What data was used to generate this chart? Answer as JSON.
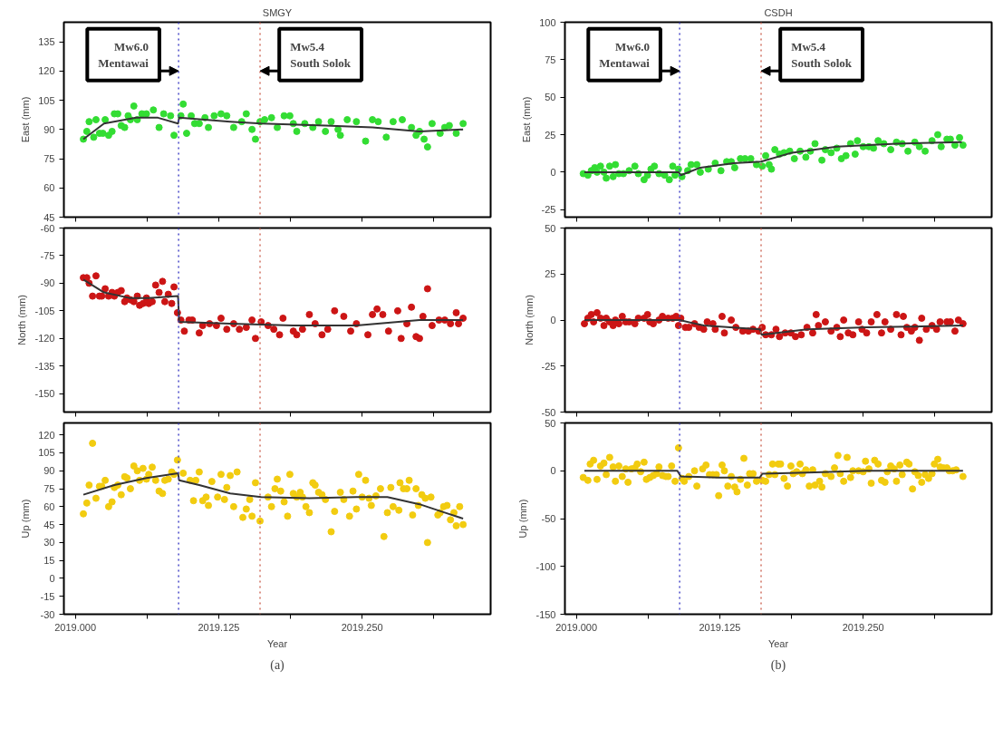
{
  "chart_data": [
    {
      "type": "scatter",
      "title": "SMGY",
      "ylabel": "East (mm)",
      "xlim": [
        2018.99,
        2019.362
      ],
      "ylim": [
        45,
        145
      ],
      "xticks": [
        2019,
        2019.0625,
        2019.125,
        2019.1875,
        2019.25,
        2019.3125
      ],
      "yticks": [
        45,
        60,
        75,
        90,
        105,
        120,
        135
      ],
      "tick_labels": "y",
      "grid": false,
      "line_style": "solid",
      "ref_lines": [
        {
          "axis": "x",
          "value": 2019.09,
          "color": "#4848c8",
          "line_style": "dotted",
          "label": "Mw6.0\nMentawai"
        },
        {
          "axis": "x",
          "value": 2019.161,
          "color": "#d07060",
          "line_style": "dotted",
          "label": "Mw5.4\nSouth Solok"
        }
      ],
      "series": [
        {
          "marker": "circle",
          "color": "#33dd33",
          "x": [
            2019.007,
            2019.01,
            2019.012,
            2019.016,
            2019.018,
            2019.021,
            2019.024,
            2019.026,
            2019.029,
            2019.032,
            2019.034,
            2019.037,
            2019.04,
            2019.043,
            2019.046,
            2019.048,
            2019.051,
            2019.054,
            2019.058,
            2019.062,
            2019.068,
            2019.073,
            2019.077,
            2019.083,
            2019.086,
            2019.092,
            2019.094,
            2019.097,
            2019.101,
            2019.104,
            2019.108,
            2019.113,
            2019.116,
            2019.121,
            2019.127,
            2019.132,
            2019.138,
            2019.145,
            2019.149,
            2019.154,
            2019.157,
            2019.161,
            2019.165,
            2019.171,
            2019.176,
            2019.182,
            2019.187,
            2019.19,
            2019.193,
            2019.2,
            2019.207,
            2019.212,
            2019.218,
            2019.223,
            2019.229,
            2019.231,
            2019.237,
            2019.245,
            2019.253,
            2019.259,
            2019.264,
            2019.271,
            2019.277,
            2019.285,
            2019.293,
            2019.297,
            2019.3,
            2019.304,
            2019.307,
            2019.311,
            2019.318,
            2019.322,
            2019.326,
            2019.332,
            2019.338
          ],
          "values": [
            85,
            89,
            94,
            86,
            95,
            88,
            88,
            95,
            87,
            89,
            98,
            98,
            92,
            91,
            97,
            95,
            102,
            95,
            98,
            98,
            100,
            91,
            98,
            97,
            87,
            97,
            103,
            88,
            97,
            93,
            93,
            96,
            91,
            97,
            98,
            97,
            91,
            94,
            98,
            90,
            85,
            94,
            95,
            96,
            91,
            97,
            97,
            93,
            89,
            93,
            91,
            94,
            89,
            94,
            90,
            87,
            95,
            94,
            84,
            95,
            94,
            86,
            94,
            95,
            91,
            87,
            89,
            85,
            81,
            93,
            88,
            91,
            92,
            88,
            93
          ]
        },
        {
          "type": "line",
          "color": "#333333",
          "x": [
            2019.007,
            2019.025,
            2019.053,
            2019.072,
            2019.0895,
            2019.0905,
            2019.135,
            2019.162,
            2019.218,
            2019.259,
            2019.3,
            2019.338
          ],
          "values": [
            85,
            93,
            96,
            96,
            93,
            96,
            94,
            93,
            92,
            91,
            89,
            90
          ]
        }
      ]
    },
    {
      "type": "scatter",
      "title": "CSDH",
      "ylabel": "East (mm)",
      "xlim": [
        2018.99,
        2019.362
      ],
      "ylim": [
        -30,
        100
      ],
      "xticks": [
        2019,
        2019.0625,
        2019.125,
        2019.1875,
        2019.25,
        2019.3125
      ],
      "yticks": [
        -25,
        0,
        25,
        50,
        75,
        100
      ],
      "tick_labels": "y",
      "grid": false,
      "line_style": "solid",
      "ref_lines": [
        {
          "axis": "x",
          "value": 2019.09,
          "color": "#4848c8",
          "line_style": "dotted",
          "label": "Mw6.0\nMentawai"
        },
        {
          "axis": "x",
          "value": 2019.161,
          "color": "#d07060",
          "line_style": "dotted",
          "label": "Mw5.4\nSouth Solok"
        }
      ],
      "series": [
        {
          "marker": "circle",
          "color": "#33dd33",
          "x": [
            2019.006,
            2019.01,
            2019.013,
            2019.016,
            2019.018,
            2019.021,
            2019.024,
            2019.026,
            2019.029,
            2019.032,
            2019.034,
            2019.037,
            2019.041,
            2019.046,
            2019.051,
            2019.054,
            2019.059,
            2019.062,
            2019.065,
            2019.068,
            2019.072,
            2019.077,
            2019.081,
            2019.084,
            2019.086,
            2019.089,
            2019.092,
            2019.097,
            2019.1,
            2019.105,
            2019.108,
            2019.115,
            2019.121,
            2019.126,
            2019.131,
            2019.135,
            2019.138,
            2019.143,
            2019.147,
            2019.152,
            2019.157,
            2019.162,
            2019.165,
            2019.168,
            2019.17,
            2019.173,
            2019.177,
            2019.181,
            2019.186,
            2019.19,
            2019.195,
            2019.2,
            2019.204,
            2019.208,
            2019.214,
            2019.217,
            2019.222,
            2019.227,
            2019.231,
            2019.235,
            2019.239,
            2019.243,
            2019.245,
            2019.25,
            2019.255,
            2019.259,
            2019.263,
            2019.268,
            2019.274,
            2019.279,
            2019.284,
            2019.289,
            2019.295,
            2019.299,
            2019.304,
            2019.31,
            2019.315,
            2019.318,
            2019.323,
            2019.326,
            2019.33,
            2019.334,
            2019.337
          ],
          "values": [
            -1,
            -2,
            1,
            3,
            0,
            4,
            0,
            -4,
            4,
            -3,
            5,
            -1,
            -1,
            1,
            4,
            -1,
            -5,
            -2,
            2,
            4,
            -1,
            -2,
            -5,
            4,
            -2,
            2,
            -3,
            1,
            5,
            5,
            0,
            2,
            6,
            1,
            7,
            7,
            3,
            9,
            9,
            9,
            5,
            4,
            11,
            5,
            2,
            15,
            12,
            13,
            14,
            9,
            14,
            10,
            14,
            19,
            8,
            15,
            13,
            16,
            9,
            11,
            19,
            12,
            21,
            17,
            17,
            16,
            21,
            19,
            15,
            20,
            19,
            14,
            20,
            17,
            14,
            21,
            25,
            17,
            22,
            22,
            18,
            23,
            18
          ]
        },
        {
          "type": "line",
          "color": "#333333",
          "x": [
            2019.007,
            2019.089,
            2019.091,
            2019.108,
            2019.137,
            2019.161,
            2019.188,
            2019.227,
            2019.279,
            2019.336
          ],
          "values": [
            0,
            0,
            -2,
            3,
            6,
            7,
            13,
            17,
            19,
            20
          ]
        }
      ]
    },
    {
      "type": "scatter",
      "ylabel": "North (mm)",
      "xlim": [
        2018.99,
        2019.362
      ],
      "ylim": [
        -160,
        -60
      ],
      "xticks": [
        2019,
        2019.0625,
        2019.125,
        2019.1875,
        2019.25,
        2019.3125
      ],
      "yticks": [
        -60,
        -75,
        -90,
        -105,
        -120,
        -135,
        -150
      ],
      "tick_labels": "y",
      "grid": false,
      "line_style": "solid",
      "ref_lines": [
        {
          "axis": "x",
          "value": 2019.09,
          "color": "#4848c8",
          "line_style": "dotted"
        },
        {
          "axis": "x",
          "value": 2019.161,
          "color": "#d07060",
          "line_style": "dotted"
        }
      ],
      "series": [
        {
          "marker": "circle",
          "color": "#cc1515",
          "x": [
            2019.007,
            2019.01,
            2019.012,
            2019.015,
            2019.018,
            2019.021,
            2019.023,
            2019.026,
            2019.029,
            2019.032,
            2019.034,
            2019.037,
            2019.04,
            2019.043,
            2019.045,
            2019.048,
            2019.051,
            2019.054,
            2019.056,
            2019.059,
            2019.062,
            2019.064,
            2019.067,
            2019.07,
            2019.073,
            2019.076,
            2019.078,
            2019.081,
            2019.084,
            2019.086,
            2019.089,
            2019.092,
            2019.095,
            2019.099,
            2019.102,
            2019.108,
            2019.111,
            2019.117,
            2019.123,
            2019.127,
            2019.132,
            2019.138,
            2019.143,
            2019.149,
            2019.154,
            2019.157,
            2019.162,
            2019.168,
            2019.173,
            2019.178,
            2019.181,
            2019.19,
            2019.193,
            2019.198,
            2019.204,
            2019.209,
            2019.215,
            2019.22,
            2019.226,
            2019.234,
            2019.24,
            2019.245,
            2019.255,
            2019.259,
            2019.263,
            2019.268,
            2019.273,
            2019.281,
            2019.284,
            2019.289,
            2019.293,
            2019.297,
            2019.3,
            2019.303,
            2019.307,
            2019.311,
            2019.317,
            2019.322,
            2019.327,
            2019.332,
            2019.334,
            2019.338
          ],
          "values": [
            -87,
            -87,
            -90,
            -97,
            -86,
            -97,
            -97,
            -93,
            -97,
            -95,
            -97,
            -95,
            -94,
            -100,
            -98,
            -99,
            -100,
            -97,
            -102,
            -101,
            -98,
            -101,
            -100,
            -91,
            -95,
            -89,
            -100,
            -96,
            -101,
            -92,
            -106,
            -110,
            -116,
            -110,
            -110,
            -117,
            -113,
            -112,
            -113,
            -109,
            -115,
            -112,
            -115,
            -114,
            -110,
            -120,
            -111,
            -113,
            -115,
            -118,
            -109,
            -116,
            -118,
            -115,
            -107,
            -112,
            -118,
            -115,
            -105,
            -108,
            -116,
            -112,
            -118,
            -107,
            -104,
            -107,
            -116,
            -105,
            -120,
            -112,
            -103,
            -119,
            -120,
            -108,
            -93,
            -113,
            -110,
            -110,
            -112,
            -106,
            -112,
            -109
          ]
        },
        {
          "type": "line",
          "color": "#333333",
          "x": [
            2019.007,
            2019.025,
            2019.047,
            2019.064,
            2019.0895,
            2019.0905,
            2019.135,
            2019.19,
            2019.245,
            2019.3,
            2019.338
          ],
          "values": [
            -88,
            -95,
            -98,
            -98,
            -97,
            -111,
            -112,
            -113,
            -113,
            -110,
            -110
          ]
        }
      ]
    },
    {
      "type": "scatter",
      "ylabel": "North (mm)",
      "xlim": [
        2018.99,
        2019.362
      ],
      "ylim": [
        -50,
        50
      ],
      "xticks": [
        2019,
        2019.0625,
        2019.125,
        2019.1875,
        2019.25,
        2019.3125
      ],
      "yticks": [
        -50,
        -25,
        0,
        25,
        50
      ],
      "tick_labels": "y",
      "grid": false,
      "line_style": "solid",
      "ref_lines": [
        {
          "axis": "x",
          "value": 2019.09,
          "color": "#4848c8",
          "line_style": "dotted"
        },
        {
          "axis": "x",
          "value": 2019.161,
          "color": "#d07060",
          "line_style": "dotted"
        }
      ],
      "series": [
        {
          "marker": "circle",
          "color": "#cc1515",
          "x": [
            2019.007,
            2019.01,
            2019.013,
            2019.015,
            2019.018,
            2019.021,
            2019.024,
            2019.026,
            2019.029,
            2019.032,
            2019.034,
            2019.037,
            2019.04,
            2019.043,
            2019.046,
            2019.051,
            2019.054,
            2019.059,
            2019.062,
            2019.064,
            2019.067,
            2019.072,
            2019.075,
            2019.08,
            2019.084,
            2019.087,
            2019.089,
            2019.091,
            2019.095,
            2019.098,
            2019.103,
            2019.107,
            2019.111,
            2019.114,
            2019.119,
            2019.121,
            2019.127,
            2019.129,
            2019.135,
            2019.139,
            2019.145,
            2019.15,
            2019.154,
            2019.159,
            2019.162,
            2019.165,
            2019.17,
            2019.174,
            2019.177,
            2019.182,
            2019.187,
            2019.191,
            2019.196,
            2019.201,
            2019.206,
            2019.209,
            2019.211,
            2019.217,
            2019.222,
            2019.227,
            2019.23,
            2019.233,
            2019.237,
            2019.241,
            2019.246,
            2019.249,
            2019.253,
            2019.257,
            2019.262,
            2019.266,
            2019.269,
            2019.274,
            2019.279,
            2019.283,
            2019.285,
            2019.288,
            2019.292,
            2019.295,
            2019.299,
            2019.301,
            2019.305,
            2019.31,
            2019.314,
            2019.317,
            2019.323,
            2019.326,
            2019.33,
            2019.333,
            2019.337
          ],
          "values": [
            -2,
            1,
            3,
            -1,
            4,
            1,
            -3,
            1,
            -1,
            -3,
            0,
            -2,
            2,
            -1,
            -1,
            -2,
            1,
            1,
            3,
            -1,
            -2,
            0,
            2,
            1,
            1,
            2,
            -3,
            1,
            -4,
            -4,
            -2,
            -4,
            -5,
            -1,
            -2,
            -5,
            2,
            -7,
            0,
            -4,
            -6,
            -6,
            -5,
            -6,
            -4,
            -8,
            -8,
            -5,
            -9,
            -7,
            -7,
            -9,
            -8,
            -4,
            -7,
            3,
            -3,
            -1,
            -6,
            -4,
            -9,
            0,
            -7,
            -8,
            -1,
            -5,
            -7,
            -1,
            3,
            -7,
            -1,
            -5,
            3,
            -8,
            2,
            -4,
            -6,
            -4,
            -11,
            1,
            -5,
            -3,
            -5,
            -1,
            -1,
            -1,
            -6,
            0,
            -2
          ]
        },
        {
          "type": "line",
          "color": "#333333",
          "x": [
            2019.007,
            2019.09,
            2019.111,
            2019.16,
            2019.1615,
            2019.201,
            2019.253,
            2019.337
          ],
          "values": [
            0,
            0,
            -3,
            -5,
            -8,
            -5,
            -4,
            -3
          ]
        }
      ]
    },
    {
      "type": "scatter",
      "ylabel": "Up (mm)",
      "xlabel": "Year",
      "xlim": [
        2018.99,
        2019.362
      ],
      "ylim": [
        -30,
        130
      ],
      "xticks": [
        {
          "value": 2019,
          "label": "2019.000"
        },
        {
          "value": 2019.0625,
          "label": null
        },
        {
          "value": 2019.125,
          "label": "2019.125"
        },
        {
          "value": 2019.1875,
          "label": null
        },
        {
          "value": 2019.25,
          "label": "2019.250"
        },
        {
          "value": 2019.3125,
          "label": null
        }
      ],
      "yticks": [
        -30,
        -15,
        0,
        15,
        30,
        45,
        60,
        75,
        90,
        105,
        120
      ],
      "grid": false,
      "line_style": "solid",
      "ref_lines": [
        {
          "axis": "x",
          "value": 2019.09,
          "color": "#4848c8",
          "line_style": "dotted"
        },
        {
          "axis": "x",
          "value": 2019.161,
          "color": "#d07060",
          "line_style": "dotted"
        }
      ],
      "annotations": [
        "(a)"
      ],
      "series": [
        {
          "marker": "circle",
          "color": "#f2cc10",
          "x": [
            2019.007,
            2019.01,
            2019.012,
            2019.015,
            2019.018,
            2019.021,
            2019.023,
            2019.026,
            2019.029,
            2019.032,
            2019.034,
            2019.037,
            2019.04,
            2019.043,
            2019.045,
            2019.048,
            2019.051,
            2019.054,
            2019.056,
            2019.059,
            2019.062,
            2019.064,
            2019.067,
            2019.07,
            2019.073,
            2019.076,
            2019.078,
            2019.081,
            2019.084,
            2019.086,
            2019.089,
            2019.094,
            2019.1,
            2019.103,
            2019.105,
            2019.108,
            2019.111,
            2019.114,
            2019.116,
            2019.119,
            2019.124,
            2019.127,
            2019.13,
            2019.132,
            2019.135,
            2019.138,
            2019.141,
            2019.146,
            2019.149,
            2019.152,
            2019.154,
            2019.157,
            2019.161,
            2019.168,
            2019.171,
            2019.174,
            2019.176,
            2019.179,
            2019.182,
            2019.185,
            2019.187,
            2019.19,
            2019.193,
            2019.196,
            2019.198,
            2019.201,
            2019.204,
            2019.207,
            2019.209,
            2019.212,
            2019.215,
            2019.218,
            2019.223,
            2019.226,
            2019.231,
            2019.234,
            2019.239,
            2019.242,
            2019.245,
            2019.247,
            2019.25,
            2019.253,
            2019.256,
            2019.258,
            2019.262,
            2019.266,
            2019.269,
            2019.272,
            2019.275,
            2019.277,
            2019.282,
            2019.283,
            2019.286,
            2019.289,
            2019.291,
            2019.294,
            2019.297,
            2019.299,
            2019.302,
            2019.305,
            2019.307,
            2019.31,
            2019.316,
            2019.318,
            2019.321,
            2019.324,
            2019.327,
            2019.33,
            2019.332,
            2019.335,
            2019.338
          ],
          "values": [
            54,
            63,
            78,
            113,
            67,
            77,
            77,
            82,
            60,
            64,
            76,
            78,
            70,
            85,
            84,
            75,
            94,
            90,
            82,
            92,
            83,
            87,
            93,
            82,
            73,
            71,
            82,
            83,
            89,
            87,
            99,
            88,
            82,
            65,
            82,
            89,
            65,
            68,
            61,
            81,
            68,
            87,
            66,
            76,
            86,
            60,
            89,
            51,
            58,
            66,
            52,
            80,
            48,
            68,
            60,
            75,
            83,
            73,
            64,
            52,
            87,
            71,
            68,
            72,
            68,
            60,
            55,
            80,
            78,
            72,
            70,
            66,
            39,
            56,
            72,
            66,
            52,
            73,
            58,
            87,
            68,
            82,
            67,
            61,
            69,
            75,
            35,
            55,
            76,
            60,
            57,
            80,
            75,
            75,
            82,
            53,
            75,
            61,
            70,
            67,
            30,
            68,
            53,
            55,
            60,
            61,
            49,
            55,
            44,
            60,
            45
          ]
        },
        {
          "type": "line",
          "color": "#333333",
          "x": [
            2019.007,
            2019.034,
            2019.062,
            2019.0895,
            2019.0905,
            2019.108,
            2019.135,
            2019.162,
            2019.204,
            2019.245,
            2019.272,
            2019.3,
            2019.322,
            2019.338
          ],
          "values": [
            70,
            78,
            84,
            88,
            82,
            78,
            71,
            68,
            67,
            68,
            68,
            62,
            55,
            50
          ]
        }
      ]
    },
    {
      "type": "scatter",
      "ylabel": "Up (mm)",
      "xlabel": "Year",
      "xlim": [
        2018.99,
        2019.362
      ],
      "ylim": [
        -150,
        50
      ],
      "xticks": [
        {
          "value": 2019,
          "label": "2019.000"
        },
        {
          "value": 2019.0625,
          "label": null
        },
        {
          "value": 2019.125,
          "label": "2019.125"
        },
        {
          "value": 2019.1875,
          "label": null
        },
        {
          "value": 2019.25,
          "label": "2019.250"
        },
        {
          "value": 2019.3125,
          "label": null
        }
      ],
      "yticks": [
        -150,
        -100,
        -50,
        0,
        50
      ],
      "grid": false,
      "line_style": "solid",
      "ref_lines": [
        {
          "axis": "x",
          "value": 2019.09,
          "color": "#4848c8",
          "line_style": "dotted"
        },
        {
          "axis": "x",
          "value": 2019.161,
          "color": "#d07060",
          "line_style": "dotted"
        }
      ],
      "annotations": [
        "(b)"
      ],
      "series": [
        {
          "marker": "circle",
          "color": "#f2cc10",
          "x": [
            2019.006,
            2019.01,
            2019.012,
            2019.015,
            2019.018,
            2019.021,
            2019.024,
            2019.026,
            2019.029,
            2019.032,
            2019.034,
            2019.037,
            2019.04,
            2019.043,
            2019.045,
            2019.048,
            2019.051,
            2019.053,
            2019.056,
            2019.059,
            2019.061,
            2019.064,
            2019.067,
            2019.07,
            2019.072,
            2019.075,
            2019.078,
            2019.08,
            2019.083,
            2019.086,
            2019.089,
            2019.092,
            2019.094,
            2019.098,
            2019.103,
            2019.105,
            2019.11,
            2019.113,
            2019.116,
            2019.119,
            2019.122,
            2019.124,
            2019.127,
            2019.129,
            2019.132,
            2019.135,
            2019.138,
            2019.14,
            2019.143,
            2019.146,
            2019.149,
            2019.151,
            2019.154,
            2019.157,
            2019.162,
            2019.165,
            2019.168,
            2019.171,
            2019.173,
            2019.176,
            2019.178,
            2019.181,
            2019.184,
            2019.187,
            2019.189,
            2019.192,
            2019.195,
            2019.197,
            2019.2,
            2019.203,
            2019.206,
            2019.208,
            2019.212,
            2019.214,
            2019.217,
            2019.222,
            2019.225,
            2019.228,
            2019.23,
            2019.233,
            2019.236,
            2019.239,
            2019.241,
            2019.246,
            2019.25,
            2019.252,
            2019.255,
            2019.257,
            2019.26,
            2019.263,
            2019.266,
            2019.269,
            2019.271,
            2019.274,
            2019.277,
            2019.279,
            2019.282,
            2019.284,
            2019.288,
            2019.29,
            2019.293,
            2019.295,
            2019.298,
            2019.301,
            2019.304,
            2019.307,
            2019.31,
            2019.312,
            2019.315,
            2019.317,
            2019.32,
            2019.323,
            2019.325,
            2019.328,
            2019.331,
            2019.337
          ],
          "values": [
            -7,
            -10,
            7,
            11,
            -9,
            5,
            8,
            -4,
            14,
            4,
            -11,
            5,
            -6,
            2,
            -12,
            2,
            3,
            7,
            -1,
            9,
            -9,
            -7,
            -5,
            -3,
            4,
            -5,
            -6,
            -6,
            5,
            -11,
            24,
            -8,
            -11,
            -6,
            0,
            -16,
            2,
            6,
            -4,
            -4,
            -4,
            -26,
            6,
            0,
            -16,
            -6,
            -17,
            -22,
            -9,
            13,
            -15,
            -3,
            -3,
            -11,
            -10,
            -11,
            -4,
            7,
            -4,
            7,
            7,
            -8,
            -16,
            5,
            -3,
            -1,
            7,
            -3,
            1,
            -16,
            1,
            -15,
            -11,
            -17,
            -3,
            -6,
            3,
            16,
            -3,
            -11,
            14,
            -7,
            0,
            0,
            -1,
            10,
            2,
            -13,
            11,
            7,
            -10,
            -12,
            -1,
            5,
            2,
            -11,
            6,
            -4,
            9,
            7,
            -19,
            -1,
            -5,
            -12,
            -4,
            -8,
            -3,
            7,
            12,
            4,
            3,
            3,
            0,
            0,
            1,
            -6
          ]
        },
        {
          "type": "line",
          "color": "#333333",
          "x": [
            2019.007,
            2019.088,
            2019.091,
            2019.124,
            2019.16,
            2019.162,
            2019.201,
            2019.253,
            2019.337
          ],
          "values": [
            0,
            0,
            -6,
            -7,
            -7,
            -3,
            -2,
            0,
            0
          ]
        }
      ]
    }
  ]
}
